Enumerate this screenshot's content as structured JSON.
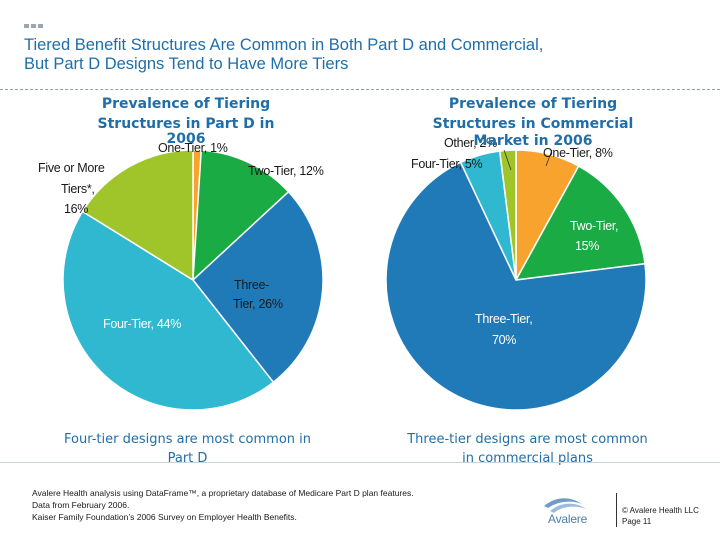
{
  "slide": {
    "title_line1": "Tiered Benefit Structures Are Common in Both Part D and Commercial,",
    "title_line2": "But Part D Designs Tend to Have More Tiers"
  },
  "chart_data": [
    {
      "type": "pie",
      "title": "Prevalence of Tiering Structures in Part D in 2006",
      "caption": "Four-tier designs are most common in Part D",
      "slices": [
        {
          "label": "One-Tier, 1%",
          "value": 1,
          "color": "#f7a32d"
        },
        {
          "label": "Two-Tier, 12%",
          "value": 12,
          "color": "#1aab45"
        },
        {
          "label": "Three-Tier, 26%",
          "value": 26,
          "color": "#217ab8"
        },
        {
          "label": "Four-Tier, 44%",
          "value": 44,
          "color": "#2fb8cf"
        },
        {
          "label": "Five or More Tiers*, 16%",
          "value": 16,
          "color": "#a0c52a"
        }
      ]
    },
    {
      "type": "pie",
      "title": "Prevalence of Tiering Structures in Commercial Market in 2006",
      "caption": "Three-tier designs are most common in commercial plans",
      "slices": [
        {
          "label": "One-Tier, 8%",
          "value": 8,
          "color": "#f7a32d"
        },
        {
          "label": "Two-Tier, 15%",
          "value": 15,
          "color": "#1aab45"
        },
        {
          "label": "Three-Tier, 70%",
          "value": 70,
          "color": "#217ab8"
        },
        {
          "label": "Four-Tier, 5%",
          "value": 5,
          "color": "#2fb8cf"
        },
        {
          "label": "Other, 2%",
          "value": 2,
          "color": "#a0c52a"
        }
      ]
    }
  ],
  "labels": {
    "left": {
      "one": "One-Tier, 1%",
      "two": "Two-Tier, 12%",
      "three_1": "Three-",
      "three_2": "Tier, 26%",
      "four": "Four-Tier, 44%",
      "five_1": "Five or More",
      "five_2": "Tiers*,",
      "five_3": "16%"
    },
    "right": {
      "other": "Other, 2%",
      "one": "One-Tier, 8%",
      "four": "Four-Tier, 5%",
      "two_1": "Two-Tier,",
      "two_2": "15%",
      "three_1": "Three-Tier,",
      "three_2": "70%"
    }
  },
  "chart_titles": {
    "left_1": "Prevalence of Tiering",
    "left_2": "Structures in Part D in",
    "left_3": "2006",
    "right_1": "Prevalence of Tiering",
    "right_2": "Structures in Commercial",
    "right_3": "Market in 2006"
  },
  "captions": {
    "left_1": "Four-tier designs are most common in",
    "left_2": "Part D",
    "right_1": "Three-tier designs are most common",
    "right_2": "in commercial plans"
  },
  "footer": {
    "note1": "Avalere Health analysis using DataFrame™, a proprietary database of Medicare Part D plan features.",
    "note2": "Data from February 2006.",
    "note3": "Kaiser Family Foundation’s 2006 Survey on Employer Health Benefits.",
    "logo_name": "Avalere",
    "copyright": "© Avalere Health LLC",
    "page": "Page 11"
  }
}
